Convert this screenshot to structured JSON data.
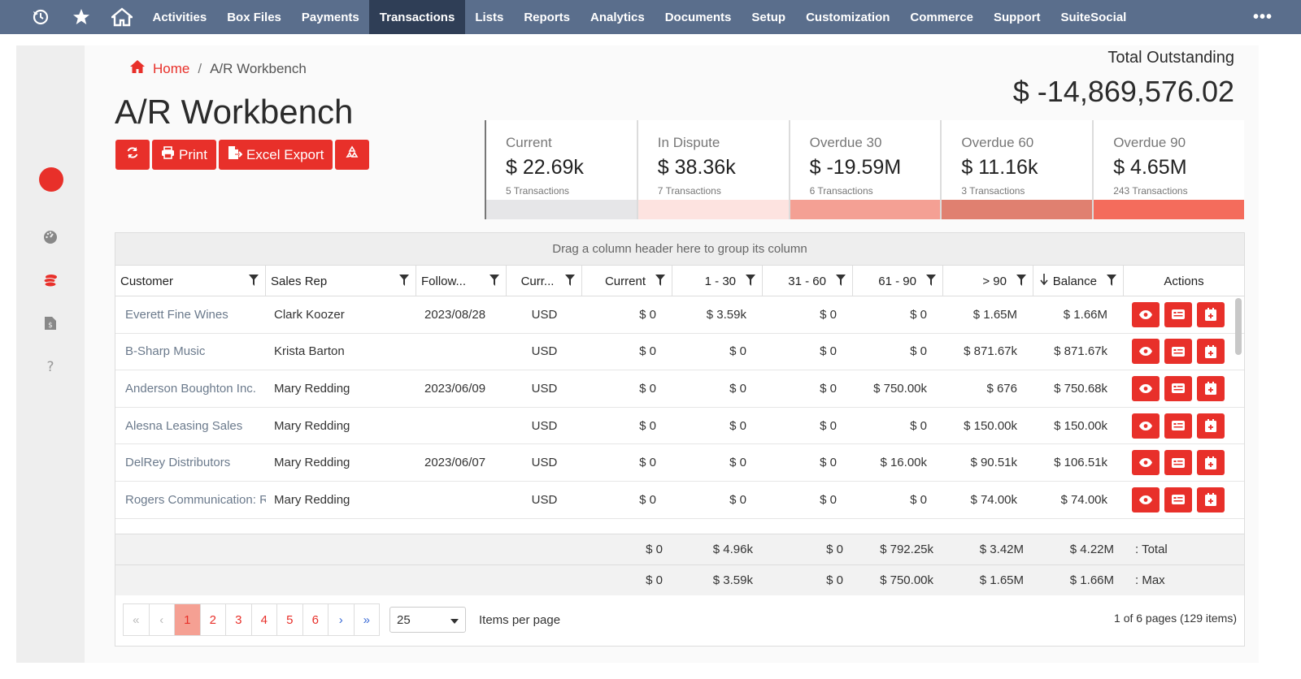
{
  "nav": {
    "items": [
      "Activities",
      "Box Files",
      "Payments",
      "Transactions",
      "Lists",
      "Reports",
      "Analytics",
      "Documents",
      "Setup",
      "Customization",
      "Commerce",
      "Support",
      "SuiteSocial"
    ],
    "active": "Transactions",
    "more": "•••"
  },
  "breadcrumb": {
    "home": "Home",
    "separator": "/",
    "current": "A/R Workbench"
  },
  "page_title": "A/R Workbench",
  "buttons": {
    "print": "Print",
    "excel": "Excel Export"
  },
  "total": {
    "label": "Total Outstanding",
    "value": "$ -14,869,576.02"
  },
  "cards": [
    {
      "label": "Current",
      "value": "$ 22.69k",
      "count": "5 Transactions",
      "bar_color": "#e6e6e8"
    },
    {
      "label": "In Dispute",
      "value": "$ 38.36k",
      "count": "7 Transactions",
      "bar_color": "#fde3e0"
    },
    {
      "label": "Overdue 30",
      "value": "$ -19.59M",
      "count": "6 Transactions",
      "bar_color": "#f4a094"
    },
    {
      "label": "Overdue 60",
      "value": "$ 11.16k",
      "count": "3 Transactions",
      "bar_color": "#e08070"
    },
    {
      "label": "Overdue 90",
      "value": "$ 4.65M",
      "count": "243 Transactions",
      "bar_color": "#f46c5c"
    }
  ],
  "grid": {
    "group_hint": "Drag a column header here to group its column",
    "columns": [
      "Customer",
      "Sales Rep",
      "Follow...",
      "Curr...",
      "Current",
      "1 - 30",
      "31 - 60",
      "61 - 90",
      "> 90",
      "Balance",
      "Actions"
    ],
    "rows": [
      [
        "Everett Fine Wines",
        "Clark Koozer",
        "2023/08/28",
        "USD",
        "$ 0",
        "$ 3.59k",
        "$ 0",
        "$ 0",
        "$ 1.65M",
        "$ 1.66M"
      ],
      [
        "B-Sharp Music",
        "Krista Barton",
        "",
        "USD",
        "$ 0",
        "$ 0",
        "$ 0",
        "$ 0",
        "$ 871.67k",
        "$ 871.67k"
      ],
      [
        "Anderson Boughton Inc.",
        "Mary Redding",
        "2023/06/09",
        "USD",
        "$ 0",
        "$ 0",
        "$ 0",
        "$ 750.00k",
        "$ 676",
        "$ 750.68k"
      ],
      [
        "Alesna Leasing Sales",
        "Mary Redding",
        "",
        "USD",
        "$ 0",
        "$ 0",
        "$ 0",
        "$ 0",
        "$ 150.00k",
        "$ 150.00k"
      ],
      [
        "DelRey Distributors",
        "Mary Redding",
        "2023/06/07",
        "USD",
        "$ 0",
        "$ 0",
        "$ 0",
        "$ 16.00k",
        "$ 90.51k",
        "$ 106.51k"
      ],
      [
        "Rogers Communication: Re",
        "Mary Redding",
        "",
        "USD",
        "$ 0",
        "$ 0",
        "$ 0",
        "$ 0",
        "$ 74.00k",
        "$ 74.00k"
      ]
    ],
    "totals": {
      "values": [
        "$ 0",
        "$ 4.96k",
        "$ 0",
        "$ 792.25k",
        "$ 3.42M",
        "$ 4.22M"
      ],
      "label": ": Total"
    },
    "max": {
      "values": [
        "$ 0",
        "$ 3.59k",
        "$ 0",
        "$ 750.00k",
        "$ 1.65M",
        "$ 1.66M"
      ],
      "label": ": Max"
    }
  },
  "pager": {
    "pages": [
      "1",
      "2",
      "3",
      "4",
      "5",
      "6"
    ],
    "active_page": "1",
    "per_page": "25",
    "per_page_label": "Items per page",
    "info": "1 of 6 pages (129 items)"
  },
  "colors": {
    "accent": "#e8302a",
    "nav_bg": "#5a6e8c",
    "nav_active": "#2f3e56"
  }
}
